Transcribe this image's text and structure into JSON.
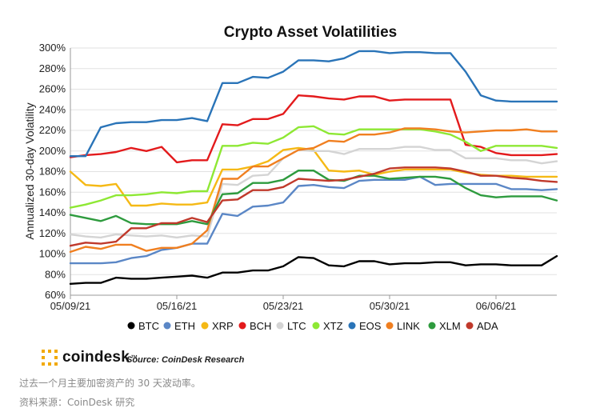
{
  "chart_data": {
    "type": "line",
    "title": "Crypto Asset Volatilities",
    "ylabel": "Annualized 30-day Volatility",
    "xlabel": "",
    "ylim": [
      60,
      300
    ],
    "yticks": [
      "60%",
      "80%",
      "100%",
      "120%",
      "140%",
      "160%",
      "180%",
      "200%",
      "220%",
      "240%",
      "260%",
      "280%",
      "300%"
    ],
    "xlim": [
      "2021-05-09",
      "2021-06-10"
    ],
    "xticks": [
      {
        "date": "2021-05-09",
        "label": "05/09/21"
      },
      {
        "date": "2021-05-16",
        "label": "05/16/21"
      },
      {
        "date": "2021-05-23",
        "label": "05/23/21"
      },
      {
        "date": "2021-05-30",
        "label": "05/30/21"
      },
      {
        "date": "2021-06-06",
        "label": "06/06/21"
      }
    ],
    "grid": "horizontal",
    "legend_position": "bottom",
    "x": [
      "2021-05-09",
      "2021-05-10",
      "2021-05-11",
      "2021-05-12",
      "2021-05-13",
      "2021-05-14",
      "2021-05-15",
      "2021-05-16",
      "2021-05-17",
      "2021-05-18",
      "2021-05-19",
      "2021-05-20",
      "2021-05-21",
      "2021-05-22",
      "2021-05-23",
      "2021-05-24",
      "2021-05-25",
      "2021-05-26",
      "2021-05-27",
      "2021-05-28",
      "2021-05-29",
      "2021-05-30",
      "2021-05-31",
      "2021-06-01",
      "2021-06-02",
      "2021-06-03",
      "2021-06-04",
      "2021-06-05",
      "2021-06-06",
      "2021-06-07",
      "2021-06-08",
      "2021-06-09",
      "2021-06-10"
    ],
    "series": [
      {
        "name": "BTC",
        "color": "#000000",
        "values": [
          71,
          72,
          72,
          77,
          76,
          76,
          77,
          78,
          79,
          77,
          82,
          82,
          84,
          84,
          88,
          97,
          96,
          89,
          88,
          93,
          93,
          90,
          91,
          91,
          92,
          92,
          89,
          90,
          90,
          89,
          89,
          89,
          98
        ]
      },
      {
        "name": "ETH",
        "color": "#5b87c6",
        "values": [
          91,
          91,
          91,
          92,
          96,
          98,
          104,
          106,
          110,
          110,
          139,
          137,
          146,
          147,
          150,
          166,
          167,
          165,
          164,
          171,
          172,
          172,
          172,
          175,
          167,
          168,
          168,
          168,
          168,
          163,
          163,
          162,
          163
        ]
      },
      {
        "name": "XRP",
        "color": "#f5b915",
        "values": [
          180,
          167,
          166,
          168,
          147,
          147,
          149,
          148,
          148,
          150,
          182,
          182,
          185,
          190,
          201,
          203,
          201,
          181,
          180,
          181,
          177,
          180,
          182,
          182,
          182,
          182,
          179,
          177,
          176,
          176,
          175,
          175,
          175
        ]
      },
      {
        "name": "BCH",
        "color": "#e31a1c",
        "values": [
          194,
          196,
          197,
          199,
          203,
          200,
          204,
          189,
          191,
          191,
          226,
          225,
          231,
          231,
          236,
          254,
          253,
          251,
          250,
          253,
          253,
          249,
          250,
          250,
          250,
          250,
          206,
          204,
          198,
          196,
          196,
          196,
          197
        ]
      },
      {
        "name": "LTC",
        "color": "#d4d4d4",
        "values": [
          119,
          117,
          116,
          119,
          118,
          117,
          118,
          116,
          118,
          117,
          168,
          167,
          176,
          177,
          193,
          201,
          200,
          200,
          197,
          202,
          202,
          202,
          204,
          204,
          201,
          201,
          193,
          193,
          193,
          191,
          191,
          188,
          190
        ]
      },
      {
        "name": "XTZ",
        "color": "#8ee834",
        "values": [
          145,
          148,
          152,
          157,
          157,
          158,
          160,
          159,
          161,
          161,
          205,
          205,
          208,
          207,
          213,
          223,
          224,
          217,
          216,
          221,
          221,
          221,
          221,
          221,
          219,
          216,
          209,
          200,
          205,
          205,
          205,
          205,
          203
        ]
      },
      {
        "name": "EOS",
        "color": "#2a74b8",
        "values": [
          195,
          195,
          223,
          227,
          228,
          228,
          230,
          230,
          232,
          229,
          266,
          266,
          272,
          271,
          277,
          288,
          288,
          287,
          290,
          297,
          297,
          295,
          296,
          296,
          295,
          295,
          277,
          254,
          249,
          248,
          248,
          248,
          248
        ]
      },
      {
        "name": "LINK",
        "color": "#f07f20",
        "values": [
          102,
          107,
          105,
          109,
          109,
          103,
          106,
          106,
          110,
          123,
          173,
          173,
          185,
          185,
          193,
          201,
          203,
          210,
          209,
          216,
          216,
          218,
          222,
          222,
          221,
          219,
          218,
          219,
          220,
          220,
          221,
          219,
          219
        ]
      },
      {
        "name": "XLM",
        "color": "#2e9b3e",
        "values": [
          138,
          135,
          132,
          137,
          130,
          129,
          129,
          129,
          132,
          129,
          158,
          159,
          169,
          169,
          172,
          181,
          181,
          172,
          171,
          176,
          176,
          173,
          174,
          175,
          175,
          173,
          164,
          157,
          155,
          156,
          156,
          156,
          152
        ]
      },
      {
        "name": "ADA",
        "color": "#c0392b",
        "values": [
          108,
          111,
          110,
          112,
          125,
          125,
          130,
          130,
          135,
          131,
          152,
          153,
          162,
          162,
          165,
          173,
          172,
          171,
          172,
          175,
          178,
          183,
          184,
          184,
          184,
          183,
          180,
          176,
          176,
          174,
          173,
          171,
          170
        ]
      }
    ]
  },
  "brand": {
    "name": "coindesk",
    "mark": "™",
    "source": "Source: CoinDesk Research"
  },
  "captions": {
    "line1": "过去一个月主要加密资产的 30 天波动率。",
    "line2": "资料来源：CoinDesk 研究"
  }
}
